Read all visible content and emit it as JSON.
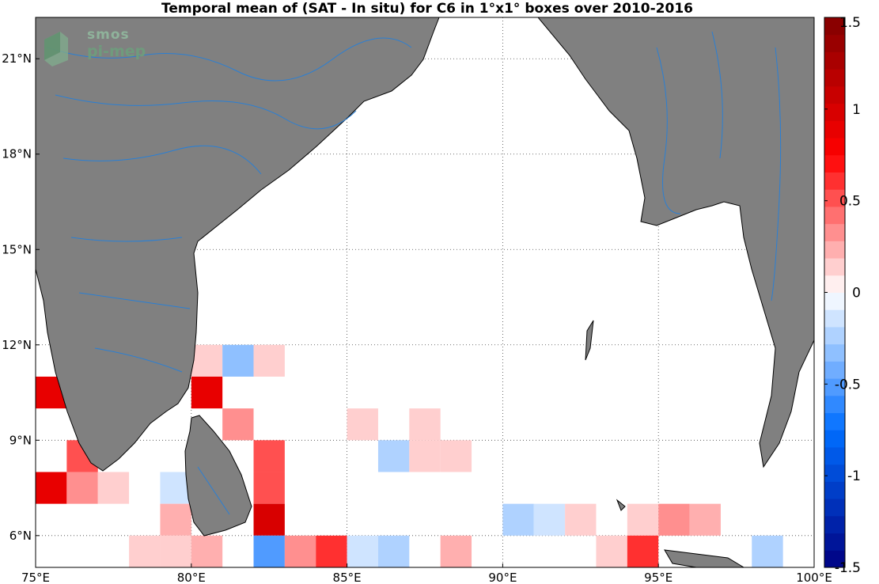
{
  "title": "Temporal mean of (SAT - In situ) for C6 in 1°x1° boxes over 2010-2016",
  "logo": {
    "line1": "smos",
    "line2": "pi-mep"
  },
  "map": {
    "lon_range": [
      75,
      100
    ],
    "lat_range": [
      5,
      22.3
    ],
    "lon_ticks": [
      75,
      80,
      85,
      90,
      95,
      100
    ],
    "lon_tick_labels": [
      "75°E",
      "80°E",
      "85°E",
      "90°E",
      "95°E",
      "100°E"
    ],
    "lat_ticks": [
      6,
      9,
      12,
      15,
      18,
      21
    ],
    "lat_tick_labels": [
      "6°N",
      "9°N",
      "12°N",
      "15°N",
      "18°N",
      "21°N"
    ],
    "land_color": "#808080",
    "river_color": "#2a7fd4",
    "grid": true
  },
  "colorbar": {
    "range": [
      -1.5,
      1.5
    ],
    "levels": 32,
    "tick_values": [
      1.5,
      1,
      0.5,
      0,
      -0.5,
      -1,
      -1.5
    ],
    "tick_labels": [
      "1.5",
      "1",
      "0.5",
      "0",
      "-0.5",
      "-1",
      "-1.5"
    ]
  },
  "chart_data": {
    "type": "heatmap",
    "title": "Temporal mean of (SAT - In situ) for C6 in 1°x1° boxes over 2010-2016",
    "cell_size_deg": 1,
    "value_range": [
      -1.5,
      1.5
    ],
    "cells": [
      {
        "lon": 75,
        "lat": 10,
        "value": 0.85
      },
      {
        "lon": 75,
        "lat": 7,
        "value": 0.85
      },
      {
        "lon": 76,
        "lat": 8,
        "value": 0.5
      },
      {
        "lon": 76,
        "lat": 7,
        "value": 0.35
      },
      {
        "lon": 77,
        "lat": 7,
        "value": 0.15
      },
      {
        "lon": 78,
        "lat": 5,
        "value": 0.1
      },
      {
        "lon": 79,
        "lat": 7,
        "value": -0.1
      },
      {
        "lon": 79,
        "lat": 6,
        "value": 0.25
      },
      {
        "lon": 79,
        "lat": 5,
        "value": 0.15
      },
      {
        "lon": 80,
        "lat": 11,
        "value": 0.15
      },
      {
        "lon": 80,
        "lat": 10,
        "value": 0.9
      },
      {
        "lon": 80,
        "lat": 5,
        "value": 0.25
      },
      {
        "lon": 81,
        "lat": 11,
        "value": -0.3
      },
      {
        "lon": 81,
        "lat": 9,
        "value": 0.3
      },
      {
        "lon": 82,
        "lat": 11,
        "value": 0.15
      },
      {
        "lon": 82,
        "lat": 8,
        "value": 0.55
      },
      {
        "lon": 82,
        "lat": 7,
        "value": 0.55
      },
      {
        "lon": 82,
        "lat": 6,
        "value": 1.0
      },
      {
        "lon": 82,
        "lat": 5,
        "value": -0.5
      },
      {
        "lon": 83,
        "lat": 5,
        "value": 0.3
      },
      {
        "lon": 84,
        "lat": 5,
        "value": 0.6
      },
      {
        "lon": 85,
        "lat": 9,
        "value": 0.15
      },
      {
        "lon": 85,
        "lat": 5,
        "value": -0.1
      },
      {
        "lon": 86,
        "lat": 8,
        "value": -0.25
      },
      {
        "lon": 86,
        "lat": 5,
        "value": -0.25
      },
      {
        "lon": 87,
        "lat": 9,
        "value": 0.15
      },
      {
        "lon": 87,
        "lat": 8,
        "value": 0.15
      },
      {
        "lon": 88,
        "lat": 8,
        "value": 0.15
      },
      {
        "lon": 88,
        "lat": 5,
        "value": 0.25
      },
      {
        "lon": 90,
        "lat": 6,
        "value": -0.25
      },
      {
        "lon": 91,
        "lat": 6,
        "value": -0.1
      },
      {
        "lon": 92,
        "lat": 6,
        "value": 0.15
      },
      {
        "lon": 93,
        "lat": 5,
        "value": 0.15
      },
      {
        "lon": 94,
        "lat": 6,
        "value": 0.15
      },
      {
        "lon": 94,
        "lat": 5,
        "value": 0.6
      },
      {
        "lon": 95,
        "lat": 6,
        "value": 0.3
      },
      {
        "lon": 96,
        "lat": 6,
        "value": 0.25
      },
      {
        "lon": 98,
        "lat": 5,
        "value": -0.25
      }
    ]
  }
}
